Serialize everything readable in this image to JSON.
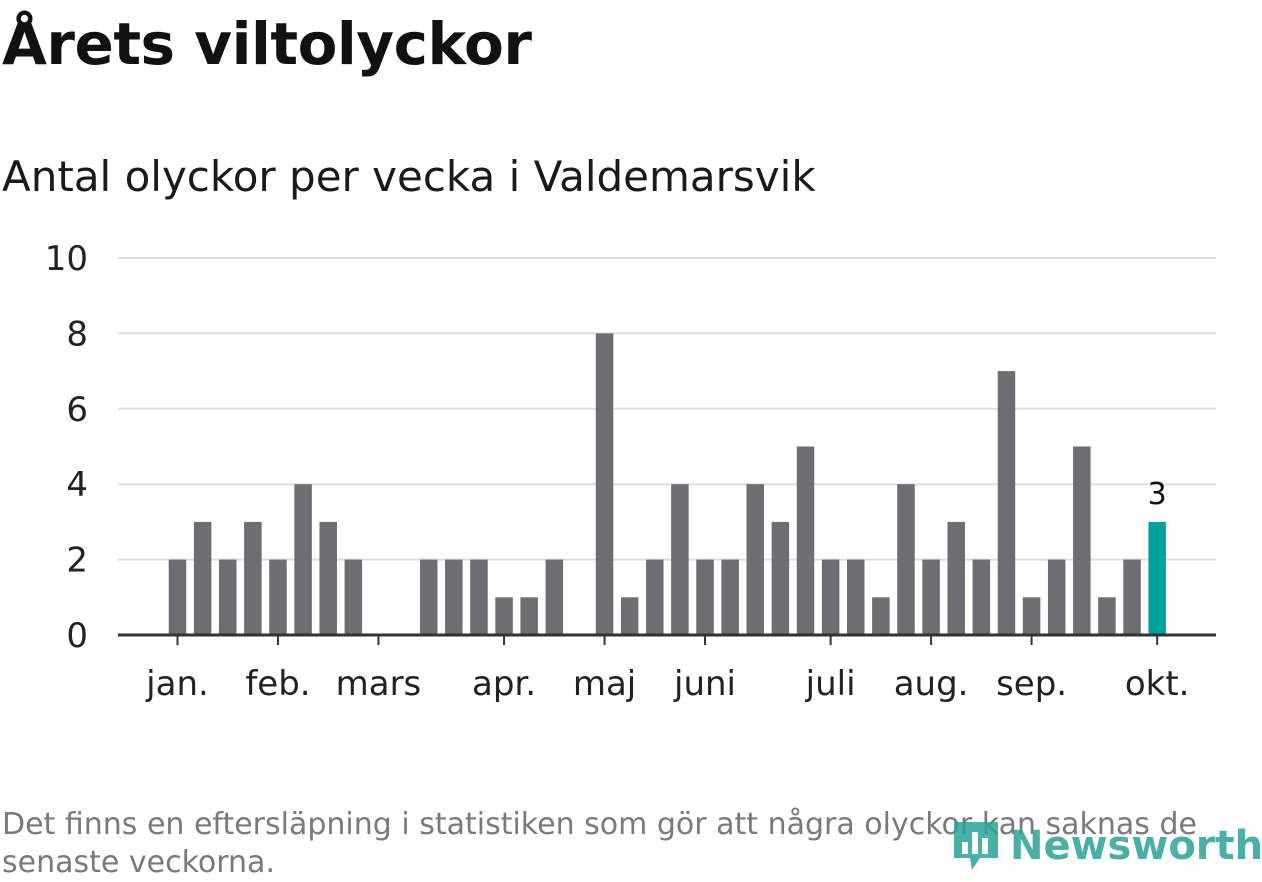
{
  "title": "Årets viltolyckor",
  "subtitle": "Antal olyckor per vecka i Valdemarsvik",
  "footnote": "Det finns en eftersläpning i statistiken som gör att några olyckor kan saknas de senaste veckorna.",
  "logo": {
    "text": "Newsworthy",
    "icon": "bar-chart-pin-icon",
    "color": "#2aa39a"
  },
  "colors": {
    "bar": "#6e6d72",
    "highlight": "#00a39a",
    "grid": "#dddddd",
    "axis": "#333333",
    "text": "#222222"
  },
  "chart_data": {
    "type": "bar",
    "title": "Antal olyckor per vecka i Valdemarsvik",
    "xlabel": "",
    "ylabel": "",
    "ylim": [
      0,
      10
    ],
    "yticks": [
      0,
      2,
      4,
      6,
      8,
      10
    ],
    "grid": true,
    "weeks": [
      1,
      2,
      3,
      4,
      5,
      6,
      7,
      8,
      9,
      10,
      11,
      12,
      13,
      14,
      15,
      16,
      17,
      18,
      19,
      20,
      21,
      22,
      23,
      24,
      25,
      26,
      27,
      28,
      29,
      30,
      31,
      32,
      33,
      34,
      35,
      36,
      37,
      38,
      39,
      40
    ],
    "values": [
      2,
      3,
      2,
      3,
      2,
      4,
      3,
      2,
      0,
      0,
      2,
      2,
      2,
      1,
      1,
      2,
      0,
      8,
      1,
      2,
      4,
      2,
      2,
      4,
      3,
      5,
      2,
      2,
      1,
      4,
      2,
      3,
      2,
      7,
      1,
      2,
      5,
      1,
      2,
      3
    ],
    "highlight_index": 39,
    "highlight_label": "3",
    "month_ticks": [
      {
        "label": "jan.",
        "week_index": 0
      },
      {
        "label": "feb.",
        "week_index": 4
      },
      {
        "label": "mars",
        "week_index": 8
      },
      {
        "label": "apr.",
        "week_index": 13
      },
      {
        "label": "maj",
        "week_index": 17
      },
      {
        "label": "juni",
        "week_index": 21
      },
      {
        "label": "juli",
        "week_index": 26
      },
      {
        "label": "aug.",
        "week_index": 30
      },
      {
        "label": "sep.",
        "week_index": 34
      },
      {
        "label": "okt.",
        "week_index": 39
      }
    ]
  }
}
